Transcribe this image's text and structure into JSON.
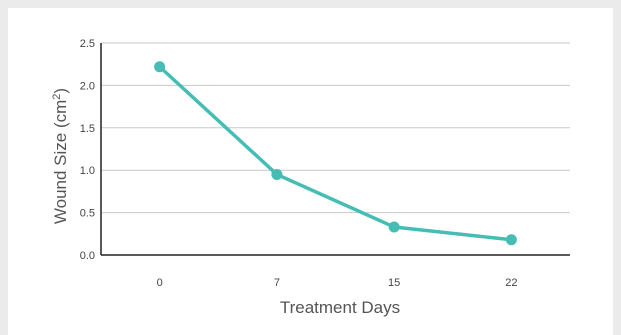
{
  "chart_data": {
    "type": "line",
    "title": "",
    "xlabel": "Treatment Days",
    "ylabel_main": "Wound Size (cm",
    "ylabel_sup": "2",
    "ylabel_close": ")",
    "categories": [
      "0",
      "7",
      "15",
      "22"
    ],
    "series": [
      {
        "values": [
          2.22,
          0.95,
          0.33,
          0.18
        ]
      }
    ],
    "y_ticks": [
      "0.0",
      "0.5",
      "1.0",
      "1.5",
      "2.0",
      "2.5"
    ],
    "ylim": [
      0,
      2.5
    ],
    "grid": true,
    "line_color": "#45bdb4",
    "grid_color": "#c9c9c9",
    "axis_color": "#222222"
  }
}
